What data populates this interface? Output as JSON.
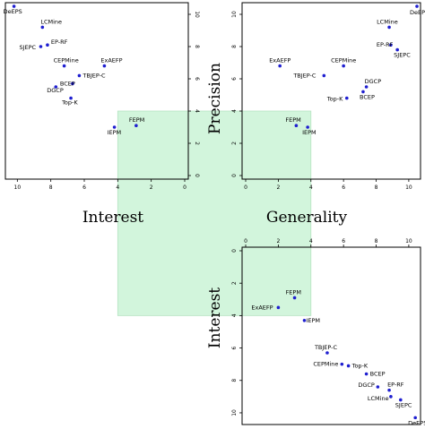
{
  "labels": {
    "interest": "Interest",
    "generality": "Generality",
    "precision": "Precision",
    "interest_vertical": "Interest"
  },
  "colors": {
    "point": "#1f1fd0",
    "highlight_fill": "#d2f5dc",
    "highlight_stroke": "#b5e3c1",
    "frame": "#000000"
  },
  "chart_data": [
    {
      "id": "interest-vs-precision",
      "type": "scatter",
      "xlabel": "Interest",
      "ylabel": "Precision",
      "xlim": [
        10.5,
        0
      ],
      "ylim": [
        0,
        10.5
      ],
      "x_reversed": true,
      "xticks": [
        10,
        8,
        6,
        4,
        2,
        0
      ],
      "yticks": [
        0,
        2,
        4,
        6,
        8,
        10
      ],
      "points": [
        {
          "label": "DeEPS",
          "x": 10.2,
          "y": 10.5
        },
        {
          "label": "LCMine",
          "x": 8.5,
          "y": 9.2
        },
        {
          "label": "SJEPC",
          "x": 8.6,
          "y": 8.0
        },
        {
          "label": "EP-RF",
          "x": 8.2,
          "y": 8.1
        },
        {
          "label": "CEPMine",
          "x": 7.2,
          "y": 6.8
        },
        {
          "label": "ExAEFP",
          "x": 4.8,
          "y": 6.8
        },
        {
          "label": "TBJEP-C",
          "x": 6.3,
          "y": 6.2
        },
        {
          "label": "BCEP",
          "x": 6.7,
          "y": 5.7
        },
        {
          "label": "DGCP",
          "x": 7.7,
          "y": 5.5
        },
        {
          "label": "Top-K",
          "x": 6.8,
          "y": 4.8
        },
        {
          "label": "FEPM",
          "x": 2.9,
          "y": 3.1
        },
        {
          "label": "IEPM",
          "x": 4.2,
          "y": 3.0
        }
      ]
    },
    {
      "id": "generality-vs-precision",
      "type": "scatter",
      "xlabel": "Generality",
      "ylabel": "Precision",
      "xlim": [
        0,
        10.5
      ],
      "ylim": [
        0,
        10.5
      ],
      "xticks": [
        0,
        2,
        4,
        6,
        8,
        10
      ],
      "yticks": [
        0,
        2,
        4,
        6,
        8,
        10
      ],
      "points": [
        {
          "label": "DeEPS",
          "x": 10.5,
          "y": 10.5
        },
        {
          "label": "LCMine",
          "x": 8.8,
          "y": 9.2
        },
        {
          "label": "EP-RF",
          "x": 8.9,
          "y": 8.1
        },
        {
          "label": "SJEPC",
          "x": 9.3,
          "y": 7.8
        },
        {
          "label": "ExAEFP",
          "x": 2.1,
          "y": 6.8
        },
        {
          "label": "CEPMine",
          "x": 6.0,
          "y": 6.8
        },
        {
          "label": "TBJEP-C",
          "x": 4.8,
          "y": 6.2
        },
        {
          "label": "DGCP",
          "x": 7.4,
          "y": 5.5
        },
        {
          "label": "BCEP",
          "x": 7.2,
          "y": 5.2
        },
        {
          "label": "Top-K",
          "x": 6.2,
          "y": 4.8
        },
        {
          "label": "FEPM",
          "x": 3.1,
          "y": 3.1
        },
        {
          "label": "IEPM",
          "x": 3.8,
          "y": 3.0
        }
      ]
    },
    {
      "id": "generality-vs-interest",
      "type": "scatter",
      "xlabel": "Generality",
      "ylabel": "Interest",
      "xlim": [
        0,
        10.5
      ],
      "ylim": [
        10.5,
        0
      ],
      "y_reversed": true,
      "xticks": [
        0,
        2,
        4,
        6,
        8,
        10
      ],
      "yticks": [
        0,
        2,
        4,
        6,
        8,
        10
      ],
      "points": [
        {
          "label": "FEPM",
          "x": 3.0,
          "y": 2.9
        },
        {
          "label": "ExAEFP",
          "x": 2.0,
          "y": 3.5
        },
        {
          "label": "IEPM",
          "x": 3.6,
          "y": 4.3
        },
        {
          "label": "TBJEP-C",
          "x": 5.0,
          "y": 6.3
        },
        {
          "label": "CEPMine",
          "x": 5.9,
          "y": 7.0
        },
        {
          "label": "Top-K",
          "x": 6.3,
          "y": 7.1
        },
        {
          "label": "BCEP",
          "x": 7.4,
          "y": 7.6
        },
        {
          "label": "DGCP",
          "x": 8.1,
          "y": 8.4
        },
        {
          "label": "EP-RF",
          "x": 8.8,
          "y": 8.6
        },
        {
          "label": "LCMine",
          "x": 8.9,
          "y": 9.0
        },
        {
          "label": "SJEPC",
          "x": 9.5,
          "y": 9.2
        },
        {
          "label": "DeEPS",
          "x": 10.4,
          "y": 10.3
        }
      ]
    }
  ]
}
